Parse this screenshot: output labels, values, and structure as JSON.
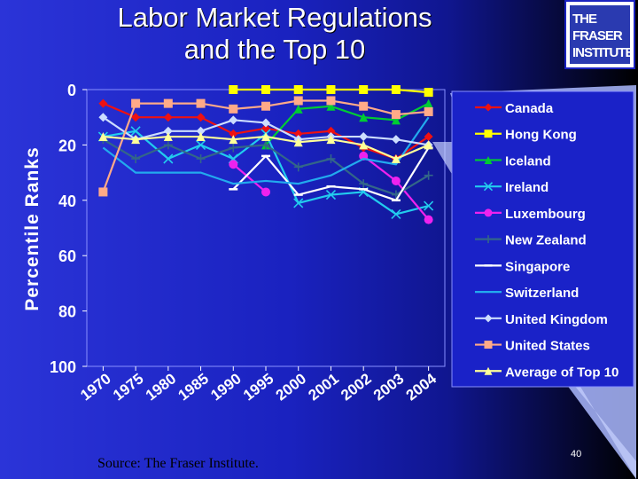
{
  "slide": {
    "title_line1": "Labor Market Regulations",
    "title_line2": "and the Top 10",
    "logo_line1": "THE FRASER",
    "logo_line2": "INSTITUTE",
    "source": "Source: The Fraser Institute.",
    "page_number": "40"
  },
  "chart_data": {
    "type": "line",
    "title": "",
    "xlabel": "",
    "ylabel": "Percentile Ranks",
    "ylim": [
      0,
      100
    ],
    "y_inverted": true,
    "y_ticks": [
      "0",
      "20",
      "40",
      "60",
      "80",
      "100"
    ],
    "categories": [
      "1970",
      "1975",
      "1980",
      "1985",
      "1990",
      "1995",
      "2000",
      "2001",
      "2002",
      "2003",
      "2004"
    ],
    "legend_position": "right",
    "series": [
      {
        "name": "Canada",
        "color": "#ee1111",
        "marker": "diamond",
        "values": [
          5,
          10,
          10,
          10,
          16,
          14,
          16,
          15,
          21,
          25,
          17
        ]
      },
      {
        "name": "Hong Kong",
        "color": "#ffff00",
        "marker": "square",
        "values": [
          null,
          null,
          null,
          null,
          0,
          0,
          0,
          0,
          0,
          0,
          1
        ]
      },
      {
        "name": "Iceland",
        "color": "#00cc33",
        "marker": "triangle",
        "values": [
          null,
          null,
          null,
          null,
          null,
          20,
          7,
          6,
          10,
          11,
          5
        ]
      },
      {
        "name": "Ireland",
        "color": "#22ccee",
        "marker": "x",
        "values": [
          17,
          15,
          25,
          20,
          25,
          16,
          41,
          38,
          37,
          45,
          42
        ]
      },
      {
        "name": "Luxembourg",
        "color": "#ee22ee",
        "marker": "circle",
        "values": [
          null,
          null,
          null,
          null,
          27,
          37,
          null,
          null,
          24,
          33,
          47
        ]
      },
      {
        "name": "New Zealand",
        "color": "#336688",
        "marker": "plus",
        "values": [
          18,
          25,
          20,
          25,
          21,
          20,
          28,
          25,
          34,
          38,
          31
        ]
      },
      {
        "name": "Singapore",
        "color": "#ffffff",
        "marker": "dash",
        "values": [
          null,
          null,
          null,
          null,
          36,
          24,
          38,
          35,
          36,
          40,
          21
        ]
      },
      {
        "name": "Switzerland",
        "color": "#22aaee",
        "marker": "none",
        "values": [
          21,
          30,
          30,
          30,
          34,
          33,
          34,
          31,
          25,
          27,
          10
        ]
      },
      {
        "name": "United Kingdom",
        "color": "#ccddff",
        "marker": "diamond",
        "values": [
          10,
          18,
          15,
          15,
          11,
          12,
          18,
          17,
          17,
          18,
          20
        ]
      },
      {
        "name": "United States",
        "color": "#ffaa88",
        "marker": "square",
        "values": [
          37,
          5,
          5,
          5,
          7,
          6,
          4,
          4,
          6,
          9,
          8
        ]
      },
      {
        "name": "Average of Top 10",
        "color": "#ffff99",
        "marker": "triangle",
        "values": [
          17,
          18,
          17,
          17,
          18,
          17,
          19,
          18,
          20,
          25,
          20
        ]
      }
    ]
  }
}
